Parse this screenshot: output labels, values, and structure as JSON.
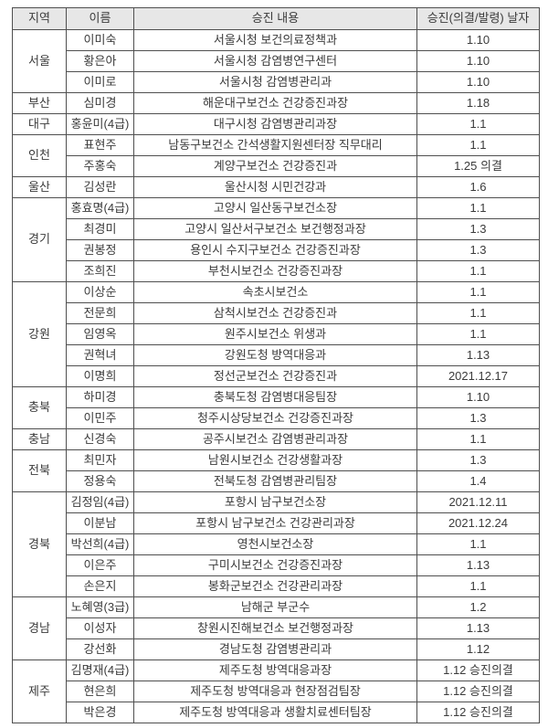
{
  "colors": {
    "header_background": "#e7e7e7",
    "border": "#4f4f4f",
    "text": "#3b3b3b",
    "page_background": "#ffffff"
  },
  "table": {
    "headers": [
      "지역",
      "이름",
      "승진 내용",
      "승진(의결/발령) 날자"
    ],
    "groups": [
      {
        "region": "서울",
        "rows": [
          {
            "name": "이미숙",
            "detail": "서울시청 보건의료정책과",
            "date": "1.10"
          },
          {
            "name": "황은아",
            "detail": "서울시청 감염병연구센터",
            "date": "1.10"
          },
          {
            "name": "이미로",
            "detail": "서울시청 감염병관리과",
            "date": "1.10"
          }
        ]
      },
      {
        "region": "부산",
        "rows": [
          {
            "name": "심미경",
            "detail": "해운대구보건소 건강증진과장",
            "date": "1.18"
          }
        ]
      },
      {
        "region": "대구",
        "rows": [
          {
            "name": "홍윤미(4급)",
            "detail": "대구시청 감염병관리과장",
            "date": "1.1"
          }
        ]
      },
      {
        "region": "인천",
        "rows": [
          {
            "name": "표현주",
            "detail": "남동구보건소 간석생활지원센터장 직무대리",
            "date": "1.1"
          },
          {
            "name": "주홍숙",
            "detail": "계양구보건소 건강증진과",
            "date": "1.25 의결"
          }
        ]
      },
      {
        "region": "울산",
        "rows": [
          {
            "name": "김성란",
            "detail": "울산시청 시민건강과",
            "date": "1.6"
          }
        ]
      },
      {
        "region": "경기",
        "rows": [
          {
            "name": "홍효명(4급)",
            "detail": "고양시 일산동구보건소장",
            "date": "1.1"
          },
          {
            "name": "최경미",
            "detail": "고양시 일산서구보건소 보건행정과장",
            "date": "1.3"
          },
          {
            "name": "권봉정",
            "detail": "용인시 수지구보건소 건강증진과장",
            "date": "1.3"
          },
          {
            "name": "조희진",
            "detail": "부천시보건소 건강증진과장",
            "date": "1.1"
          }
        ]
      },
      {
        "region": "강원",
        "rows": [
          {
            "name": "이상순",
            "detail": "속초시보건소",
            "date": "1.1"
          },
          {
            "name": "전문희",
            "detail": "삼척시보건소 건강증진과",
            "date": "1.1"
          },
          {
            "name": "임영옥",
            "detail": "원주시보건소 위생과",
            "date": "1.1"
          },
          {
            "name": "권혁녀",
            "detail": "강원도청 방역대응과",
            "date": "1.13"
          },
          {
            "name": "이명희",
            "detail": "정선군보건소 건강증진과",
            "date": "2021.12.17"
          }
        ]
      },
      {
        "region": "충북",
        "rows": [
          {
            "name": "하미경",
            "detail": "충북도청 감염병대응팀장",
            "date": "1.10"
          },
          {
            "name": "이민주",
            "detail": "청주시상당보건소 건강증진과장",
            "date": "1.3"
          }
        ]
      },
      {
        "region": "충남",
        "rows": [
          {
            "name": "신경숙",
            "detail": "공주시보건소 감염병관리과장",
            "date": "1.1"
          }
        ]
      },
      {
        "region": "전북",
        "rows": [
          {
            "name": "최민자",
            "detail": "남원시보건소 건강생활과장",
            "date": "1.3"
          },
          {
            "name": "정용숙",
            "detail": "전북도청 감염병관리팀장",
            "date": "1.4"
          }
        ]
      },
      {
        "region": "경북",
        "rows": [
          {
            "name": "김정임(4급)",
            "detail": "포항시 남구보건소장",
            "date": "2021.12.11"
          },
          {
            "name": "이분남",
            "detail": "포항시 남구보건소 건강관리과장",
            "date": "2021.12.24"
          },
          {
            "name": "박선희(4급)",
            "detail": "영천시보건소장",
            "date": "1.1"
          },
          {
            "name": "이은주",
            "detail": "구미시보건소 건강증진과장",
            "date": "1.13"
          },
          {
            "name": "손은지",
            "detail": "봉화군보건소 건강관리과장",
            "date": "1.1"
          }
        ]
      },
      {
        "region": "경남",
        "rows": [
          {
            "name": "노혜영(3급)",
            "detail": "남해군 부군수",
            "date": "1.2"
          },
          {
            "name": "이성자",
            "detail": "창원시진해보건소 보건행정과장",
            "date": "1.13"
          },
          {
            "name": "강선화",
            "detail": "경남도청 감염병관리과",
            "date": "1.12"
          }
        ]
      },
      {
        "region": "제주",
        "rows": [
          {
            "name": "김명재(4급)",
            "detail": "제주도청 방역대응과장",
            "date": "1.12 승진의결"
          },
          {
            "name": "현은희",
            "detail": "제주도청 방역대응과 현장점검팀장",
            "date": "1.12 승진의결"
          },
          {
            "name": "박은경",
            "detail": "제주도청 방역대응과 생활치료센터팀장",
            "date": "1.12 승진의결"
          }
        ]
      }
    ]
  }
}
